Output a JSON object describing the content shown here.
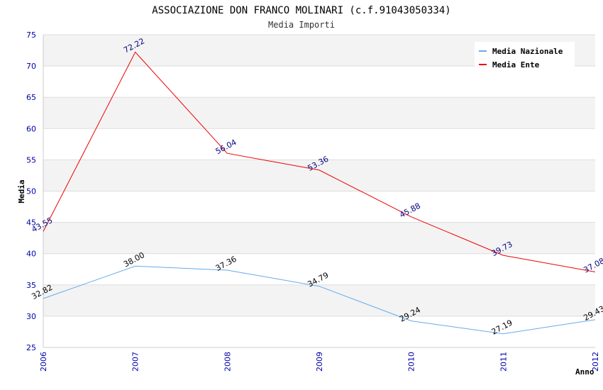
{
  "chart_data": {
    "type": "line",
    "title": "ASSOCIAZIONE DON FRANCO MOLINARI (c.f.91043050334)",
    "subtitle": "Media Importi",
    "xlabel": "Anno",
    "ylabel": "Media",
    "ylim": [
      25,
      75
    ],
    "yticks": [
      "25",
      "30",
      "35",
      "40",
      "45",
      "50",
      "55",
      "60",
      "65",
      "70",
      "75"
    ],
    "categories": [
      "2006",
      "2007",
      "2008",
      "2009",
      "2010",
      "2011",
      "2012"
    ],
    "grid": true,
    "legend_position": "top-right",
    "series": [
      {
        "name": "Media Nazionale",
        "color": "#66aaee",
        "values": [
          32.82,
          38.0,
          37.36,
          34.79,
          29.24,
          27.19,
          29.43
        ],
        "labels": [
          "32.82",
          "38.00",
          "37.36",
          "34.79",
          "29.24",
          "27.19",
          "29.43"
        ]
      },
      {
        "name": "Media Ente",
        "color": "#ee0000",
        "values": [
          43.55,
          72.22,
          56.04,
          53.36,
          45.88,
          39.73,
          37.08
        ],
        "labels": [
          "43.55",
          "72.22",
          "56.04",
          "53.36",
          "45.88",
          "39.73",
          "37.08"
        ]
      }
    ]
  }
}
